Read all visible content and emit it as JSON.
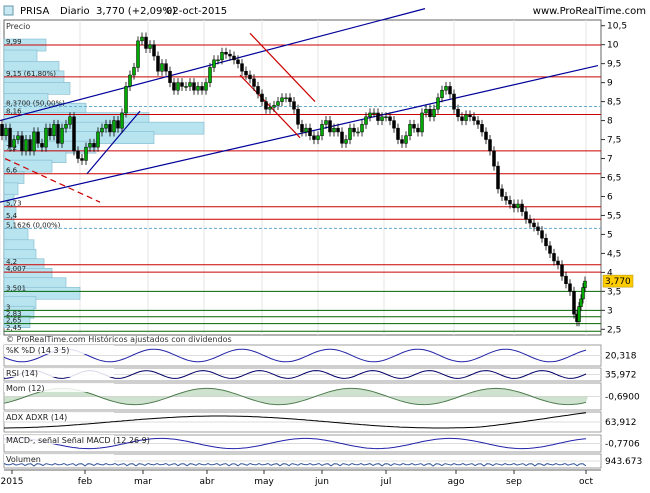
{
  "header": {
    "symbol": "PRISA",
    "period": "Diario",
    "quote": "3,770 (+2,09%)",
    "date": "02-oct-2015",
    "site": "www.ProRealTime.com"
  },
  "price_panel": {
    "label": "Precio",
    "footer": "© ProRealTime.com  Históricos ajustados con dividendos",
    "last_value": "3,770"
  },
  "indicators": [
    {
      "key": "pctd",
      "label": "%K  %D (14 3 5)",
      "value": "20,318"
    },
    {
      "key": "rsi",
      "label": "RSI (14)",
      "value": "35,972"
    },
    {
      "key": "mom",
      "label": "Mom (12)",
      "value": "-0,6900"
    },
    {
      "key": "adx",
      "label": "ADX  ADXR (14)",
      "value": "63,912"
    },
    {
      "key": "macd",
      "label": "MACD-, señal  Señal  MACD (12 26 9)",
      "value": "-0,7706"
    },
    {
      "key": "vol",
      "label": "Volumen",
      "value": "943.673"
    }
  ],
  "colors": {
    "up": "#00aa00",
    "down": "#cc0000",
    "trendline": "#000099",
    "hline": "#cc0000",
    "support": "#006600",
    "fib": "#66aacc",
    "volume_profile": "#b8e4f0",
    "last_label_bg": "#ffcc00"
  },
  "chart_data": {
    "type": "candlestick",
    "ylim": [
      2.35,
      10.65
    ],
    "y_ticks": [
      "10,5",
      "10",
      "9,5",
      "9",
      "8,5",
      "8",
      "7,5",
      "7",
      "6,5",
      "6",
      "5,5",
      "5",
      "4,5",
      "4",
      "3,5",
      "3",
      "2,5"
    ],
    "x_ticks": [
      "2015",
      "feb",
      "mar",
      "abr",
      "may",
      "jun",
      "jul",
      "ago",
      "sep",
      "oct"
    ],
    "horizontal_levels": [
      {
        "price": 9.99,
        "label": "9,99",
        "color": "red"
      },
      {
        "price": 9.15,
        "label": "9,15 (61,80%)",
        "color": "red"
      },
      {
        "price": 8.37,
        "label": "8,3700 (50,00%)",
        "color": "fib"
      },
      {
        "price": 8.16,
        "label": "8,16",
        "color": "red"
      },
      {
        "price": 7.2,
        "label": "7,2",
        "color": "red"
      },
      {
        "price": 6.6,
        "label": "6,6",
        "color": "red"
      },
      {
        "price": 5.73,
        "label": "5,73",
        "color": "red"
      },
      {
        "price": 5.4,
        "label": "5,4",
        "color": "red"
      },
      {
        "price": 5.16,
        "label": "5,1626 (0,00%)",
        "color": "fib"
      },
      {
        "price": 4.2,
        "label": "4,2",
        "color": "red"
      },
      {
        "price": 4.007,
        "label": "4,007",
        "color": "red"
      },
      {
        "price": 3.501,
        "label": "3,501",
        "color": "green"
      },
      {
        "price": 3.0,
        "label": "3",
        "color": "green"
      },
      {
        "price": 2.83,
        "label": "2,83",
        "color": "green"
      },
      {
        "price": 2.65,
        "label": "2,65",
        "color": "green"
      },
      {
        "price": 2.45,
        "label": "2,45",
        "color": "green"
      }
    ],
    "price_path": [
      [
        0,
        7.9
      ],
      [
        4,
        7.6
      ],
      [
        8,
        7.8
      ],
      [
        12,
        7.3
      ],
      [
        16,
        7.5
      ],
      [
        20,
        7.6
      ],
      [
        24,
        7.2
      ],
      [
        28,
        7.5
      ],
      [
        32,
        7.2
      ],
      [
        36,
        7.7
      ],
      [
        40,
        7.4
      ],
      [
        44,
        7.3
      ],
      [
        48,
        7.8
      ],
      [
        52,
        7.6
      ],
      [
        56,
        7.9
      ],
      [
        60,
        7.4
      ],
      [
        64,
        7.8
      ],
      [
        68,
        7.9
      ],
      [
        72,
        8.1
      ],
      [
        76,
        7.2
      ],
      [
        80,
        7.0
      ],
      [
        84,
        6.95
      ],
      [
        88,
        7.3
      ],
      [
        92,
        7.4
      ],
      [
        96,
        7.3
      ],
      [
        100,
        7.7
      ],
      [
        104,
        7.8
      ],
      [
        108,
        7.9
      ],
      [
        112,
        7.7
      ],
      [
        116,
        8.0
      ],
      [
        120,
        7.8
      ],
      [
        124,
        8.2
      ],
      [
        128,
        8.9
      ],
      [
        132,
        9.2
      ],
      [
        136,
        9.4
      ],
      [
        140,
        10.1
      ],
      [
        144,
        10.2
      ],
      [
        148,
        9.9
      ],
      [
        152,
        10.0
      ],
      [
        156,
        9.7
      ],
      [
        160,
        9.3
      ],
      [
        164,
        9.5
      ],
      [
        168,
        9.3
      ],
      [
        172,
        9.0
      ],
      [
        176,
        8.8
      ],
      [
        180,
        9.0
      ],
      [
        184,
        8.9
      ],
      [
        188,
        8.9
      ],
      [
        192,
        9.0
      ],
      [
        196,
        8.8
      ],
      [
        200,
        8.9
      ],
      [
        204,
        8.8
      ],
      [
        208,
        9.0
      ],
      [
        212,
        9.4
      ],
      [
        216,
        9.6
      ],
      [
        220,
        9.6
      ],
      [
        224,
        9.8
      ],
      [
        228,
        9.75
      ],
      [
        232,
        9.7
      ],
      [
        236,
        9.6
      ],
      [
        240,
        9.5
      ],
      [
        244,
        9.3
      ],
      [
        248,
        9.2
      ],
      [
        252,
        9.1
      ],
      [
        256,
        8.9
      ],
      [
        260,
        8.7
      ],
      [
        264,
        8.5
      ],
      [
        268,
        8.3
      ],
      [
        272,
        8.35
      ],
      [
        276,
        8.4
      ],
      [
        280,
        8.5
      ],
      [
        284,
        8.6
      ],
      [
        288,
        8.6
      ],
      [
        292,
        8.5
      ],
      [
        296,
        8.3
      ],
      [
        300,
        7.9
      ],
      [
        304,
        7.7
      ],
      [
        308,
        7.8
      ],
      [
        312,
        7.6
      ],
      [
        316,
        7.5
      ],
      [
        320,
        7.6
      ],
      [
        324,
        7.9
      ],
      [
        328,
        8.0
      ],
      [
        332,
        7.7
      ],
      [
        336,
        7.8
      ],
      [
        340,
        7.7
      ],
      [
        344,
        7.4
      ],
      [
        348,
        7.5
      ],
      [
        352,
        7.8
      ],
      [
        356,
        7.7
      ],
      [
        360,
        7.7
      ],
      [
        364,
        7.9
      ],
      [
        368,
        8.1
      ],
      [
        372,
        8.2
      ],
      [
        376,
        8.2
      ],
      [
        380,
        8.0
      ],
      [
        384,
        8.1
      ],
      [
        388,
        8.1
      ],
      [
        392,
        8.0
      ],
      [
        396,
        7.8
      ],
      [
        400,
        7.5
      ],
      [
        404,
        7.4
      ],
      [
        408,
        7.6
      ],
      [
        412,
        7.9
      ],
      [
        416,
        7.8
      ],
      [
        420,
        7.7
      ],
      [
        424,
        8.2
      ],
      [
        428,
        8.3
      ],
      [
        432,
        8.1
      ],
      [
        436,
        8.3
      ],
      [
        440,
        8.6
      ],
      [
        444,
        8.8
      ],
      [
        448,
        8.9
      ],
      [
        452,
        8.7
      ],
      [
        456,
        8.3
      ],
      [
        460,
        8.1
      ],
      [
        464,
        8.0
      ],
      [
        468,
        8.15
      ],
      [
        472,
        8.1
      ],
      [
        476,
        8.0
      ],
      [
        480,
        7.9
      ],
      [
        484,
        7.7
      ],
      [
        488,
        7.5
      ],
      [
        492,
        7.2
      ],
      [
        496,
        6.8
      ],
      [
        500,
        6.2
      ],
      [
        504,
        6.0
      ],
      [
        508,
        5.9
      ],
      [
        512,
        5.8
      ],
      [
        516,
        5.7
      ],
      [
        520,
        5.8
      ],
      [
        524,
        5.6
      ],
      [
        528,
        5.4
      ],
      [
        532,
        5.3
      ],
      [
        536,
        5.2
      ],
      [
        540,
        5.1
      ],
      [
        544,
        4.9
      ],
      [
        548,
        4.7
      ],
      [
        552,
        4.5
      ],
      [
        556,
        4.3
      ],
      [
        560,
        4.2
      ],
      [
        564,
        3.9
      ],
      [
        568,
        3.7
      ],
      [
        572,
        3.5
      ],
      [
        576,
        2.9
      ],
      [
        578,
        2.7
      ],
      [
        580,
        3.1
      ],
      [
        582,
        3.3
      ],
      [
        584,
        3.6
      ],
      [
        586,
        3.77
      ]
    ],
    "trendlines": [
      {
        "x1": 0,
        "y1": 8.0,
        "x2": 425,
        "y2": 10.95
      },
      {
        "x1": 0,
        "y1": 5.85,
        "x2": 598,
        "y2": 9.45
      },
      {
        "x1": 87,
        "y1": 6.6,
        "x2": 140,
        "y2": 8.25
      },
      {
        "x1": 250,
        "y1": 10.3,
        "x2": 315,
        "y2": 8.5
      },
      {
        "x1": 240,
        "y1": 9.2,
        "x2": 300,
        "y2": 7.55
      },
      {
        "x1": 5,
        "y1": 7.0,
        "x2": 100,
        "y2": 5.85
      }
    ],
    "volume_profile": [
      {
        "price": 9.99,
        "width": 42
      },
      {
        "price": 9.7,
        "width": 33
      },
      {
        "price": 9.4,
        "width": 55
      },
      {
        "price": 9.15,
        "width": 60
      },
      {
        "price": 8.85,
        "width": 66
      },
      {
        "price": 8.55,
        "width": 44
      },
      {
        "price": 8.3,
        "width": 82
      },
      {
        "price": 8.05,
        "width": 145
      },
      {
        "price": 7.8,
        "width": 200
      },
      {
        "price": 7.55,
        "width": 150
      },
      {
        "price": 7.3,
        "width": 92
      },
      {
        "price": 7.05,
        "width": 62
      },
      {
        "price": 6.8,
        "width": 48
      },
      {
        "price": 6.5,
        "width": 20
      },
      {
        "price": 6.2,
        "width": 14
      },
      {
        "price": 5.9,
        "width": 10
      },
      {
        "price": 5.6,
        "width": 12
      },
      {
        "price": 5.3,
        "width": 10
      },
      {
        "price": 5.0,
        "width": 24
      },
      {
        "price": 4.7,
        "width": 30
      },
      {
        "price": 4.45,
        "width": 32
      },
      {
        "price": 4.2,
        "width": 40
      },
      {
        "price": 3.95,
        "width": 48
      },
      {
        "price": 3.7,
        "width": 62
      },
      {
        "price": 3.45,
        "width": 76
      },
      {
        "price": 3.2,
        "width": 32
      },
      {
        "price": 2.95,
        "width": 30
      },
      {
        "price": 2.7,
        "width": 26
      }
    ]
  }
}
